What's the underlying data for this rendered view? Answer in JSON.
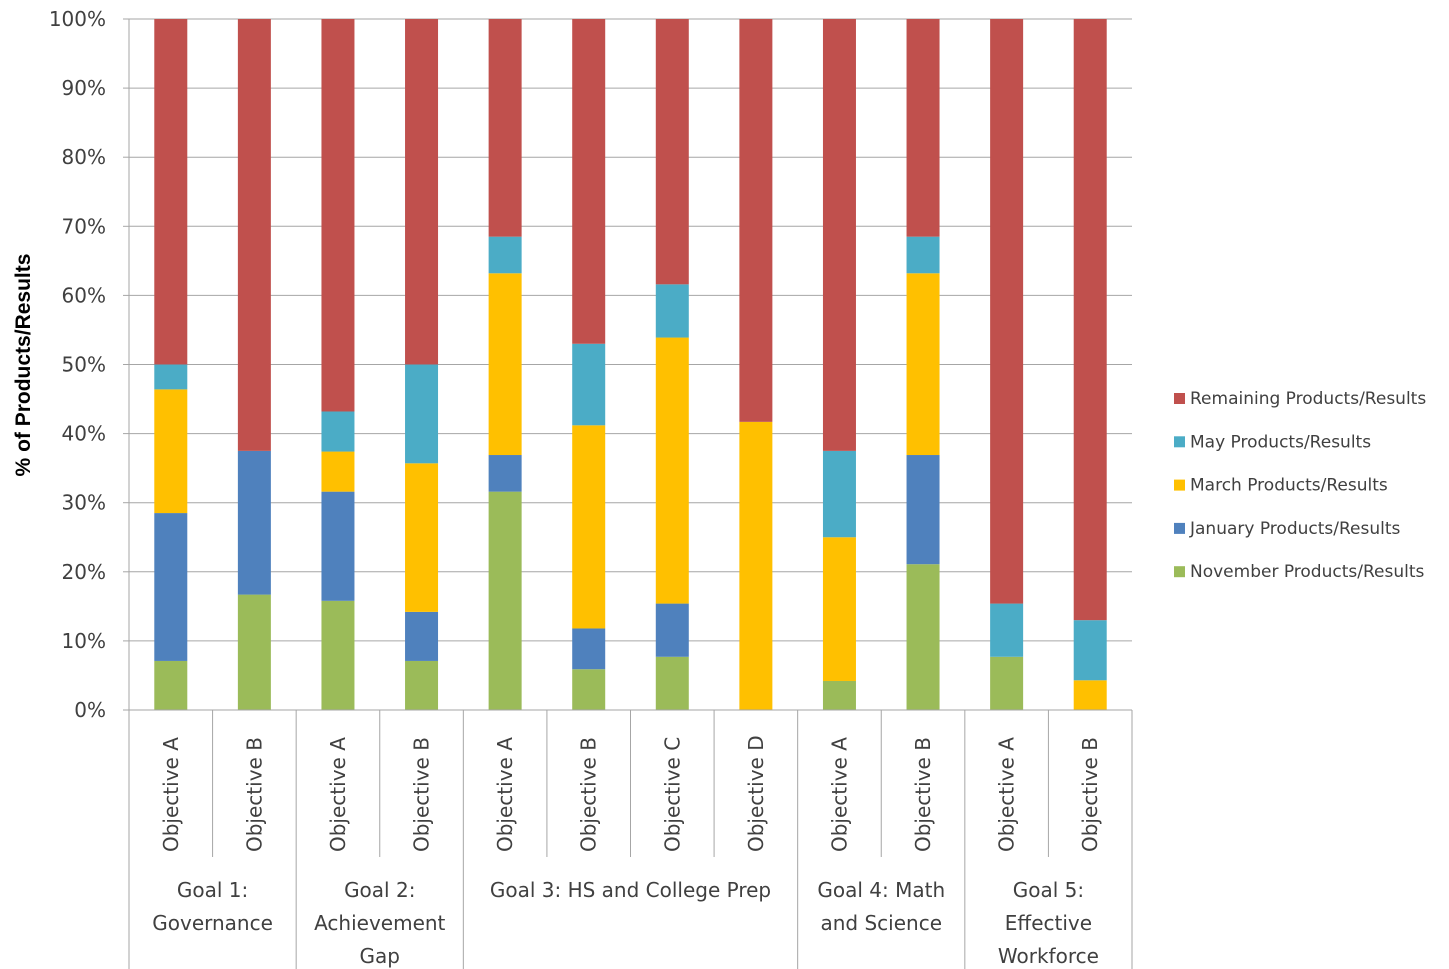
{
  "chart_data": {
    "type": "bar",
    "stacked": true,
    "percent_stacked": true,
    "ylabel": "% of Products/Results",
    "xlabel": "",
    "ylim": [
      0,
      100
    ],
    "yticks": [
      "0%",
      "10%",
      "20%",
      "30%",
      "40%",
      "50%",
      "60%",
      "70%",
      "80%",
      "90%",
      "100%"
    ],
    "grid": true,
    "legend_position": "right",
    "categories": [
      "Objective A",
      "Objective B",
      "Objective A",
      "Objective B",
      "Objective A",
      "Objective B",
      "Objective C",
      "Objective D",
      "Objective A",
      "Objective B",
      "Objective A",
      "Objective B"
    ],
    "groups": [
      {
        "lines": [
          "Goal 1:",
          "Governance"
        ],
        "count": 2
      },
      {
        "lines": [
          "Goal 2:",
          "Achievement",
          "Gap"
        ],
        "count": 2
      },
      {
        "lines": [
          "Goal 3: HS and College Prep"
        ],
        "count": 4
      },
      {
        "lines": [
          "Goal 4: Math",
          "and Science"
        ],
        "count": 2
      },
      {
        "lines": [
          "Goal 5:",
          "Effective",
          "Workforce"
        ],
        "count": 2
      }
    ],
    "series": [
      {
        "name": "November Products/Results",
        "color": "#9BBB59",
        "values": [
          7.1,
          16.7,
          15.8,
          7.1,
          31.6,
          5.9,
          7.7,
          0,
          4.2,
          21.1,
          7.7,
          0
        ]
      },
      {
        "name": "January Products/Results",
        "color": "#4F81BD",
        "values": [
          21.4,
          20.8,
          15.8,
          7.1,
          5.3,
          5.9,
          7.7,
          0,
          0,
          15.8,
          0,
          0
        ]
      },
      {
        "name": "March Products/Results",
        "color": "#FFC000",
        "values": [
          17.9,
          0,
          5.8,
          21.5,
          26.3,
          29.4,
          38.5,
          41.7,
          20.8,
          26.3,
          0,
          4.3
        ]
      },
      {
        "name": "May Products/Results",
        "color": "#4BACC6",
        "values": [
          3.6,
          0,
          5.8,
          14.3,
          5.3,
          11.8,
          7.7,
          0,
          12.5,
          5.3,
          7.7,
          8.7
        ]
      },
      {
        "name": "Remaining Products/Results",
        "color": "#C0504D",
        "values": [
          50.0,
          62.5,
          56.8,
          50.0,
          31.5,
          47.0,
          38.4,
          58.3,
          62.5,
          31.5,
          84.6,
          87.0
        ]
      }
    ],
    "legend_order": [
      "Remaining Products/Results",
      "May Products/Results",
      "March Products/Results",
      "January Products/Results",
      "November Products/Results"
    ]
  }
}
